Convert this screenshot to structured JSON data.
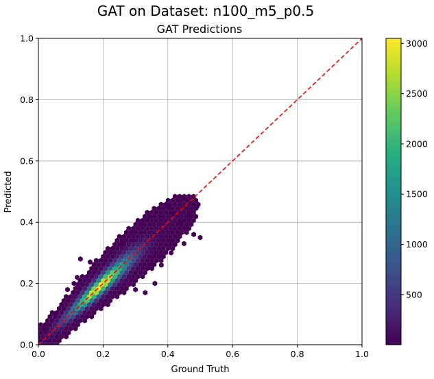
{
  "figure": {
    "suptitle": "GAT on Dataset: n100_m5_p0.5"
  },
  "chart_data": {
    "type": "heatmap",
    "subtype": "hexbin",
    "title": "GAT Predictions",
    "xlabel": "Ground Truth",
    "ylabel": "Predicted",
    "xlim": [
      0.0,
      1.0
    ],
    "ylim": [
      0.0,
      1.0
    ],
    "xticks": [
      "0.0",
      "0.2",
      "0.4",
      "0.6",
      "0.8",
      "1.0"
    ],
    "yticks": [
      "0.0",
      "0.2",
      "0.4",
      "0.6",
      "0.8",
      "1.0"
    ],
    "grid": true,
    "reference_line": {
      "label": "y = x",
      "from": [
        0,
        0
      ],
      "to": [
        1,
        1
      ],
      "color": "#ff0000",
      "style": "dashed"
    },
    "colorbar": {
      "min": 1,
      "max": 3050,
      "ticks": [
        500,
        1000,
        1500,
        2000,
        2500,
        3000
      ],
      "colormap": "viridis"
    },
    "density_model": {
      "center": [
        0.19,
        0.19
      ],
      "peak_count": 3050,
      "along_diagonal_spread": 0.075,
      "across_diagonal_spread": 0.018,
      "x_range": [
        0.0,
        0.5
      ],
      "y_range": [
        0.0,
        0.49
      ]
    },
    "outliers": [
      [
        0.45,
        0.48
      ],
      [
        0.49,
        0.45
      ],
      [
        0.47,
        0.42
      ],
      [
        0.44,
        0.4
      ],
      [
        0.5,
        0.35
      ],
      [
        0.46,
        0.38
      ],
      [
        0.42,
        0.43
      ],
      [
        0.48,
        0.36
      ],
      [
        0.45,
        0.33
      ],
      [
        0.4,
        0.45
      ],
      [
        0.43,
        0.34
      ],
      [
        0.11,
        0.2
      ],
      [
        0.09,
        0.18
      ],
      [
        0.16,
        0.27
      ],
      [
        0.13,
        0.28
      ],
      [
        0.33,
        0.17
      ],
      [
        0.36,
        0.2
      ],
      [
        0.3,
        0.18
      ],
      [
        0.02,
        0.05
      ],
      [
        0.05,
        0.1
      ],
      [
        0.38,
        0.26
      ],
      [
        0.26,
        0.33
      ],
      [
        0.12,
        0.22
      ],
      [
        0.41,
        0.3
      ]
    ]
  }
}
